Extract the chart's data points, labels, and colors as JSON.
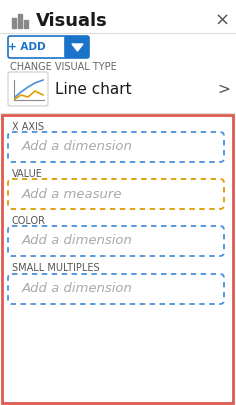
{
  "bg_color": "#ffffff",
  "red_border_color": "#e05a4e",
  "title": "Visuals",
  "title_fontsize": 13,
  "title_color": "#1a1a1a",
  "close_x_color": "#555555",
  "add_btn_color": "#1a73c8",
  "change_type_label": "CHANGE VISUAL TYPE",
  "change_type_fontsize": 7.0,
  "change_type_color": "#666666",
  "line_chart_label": "Line chart",
  "line_chart_fontsize": 11,
  "arrow_color": "#555555",
  "section_labels": [
    "X AXIS",
    "VALUE",
    "COLOR",
    "SMALL MULTIPLES"
  ],
  "section_placeholders": [
    "Add a dimension",
    "Add a measure",
    "Add a dimension",
    "Add a dimension"
  ],
  "section_label_fontsize": 7.0,
  "placeholder_fontsize": 9.5,
  "blue_dashed_color": "#4a90d9",
  "orange_dashed_color": "#e09c00",
  "placeholder_text_color": "#aaaaaa",
  "section_label_color": "#555555",
  "separator_color": "#dddddd",
  "icon_gray": "#888888",
  "icon_box_border": "#cccccc"
}
